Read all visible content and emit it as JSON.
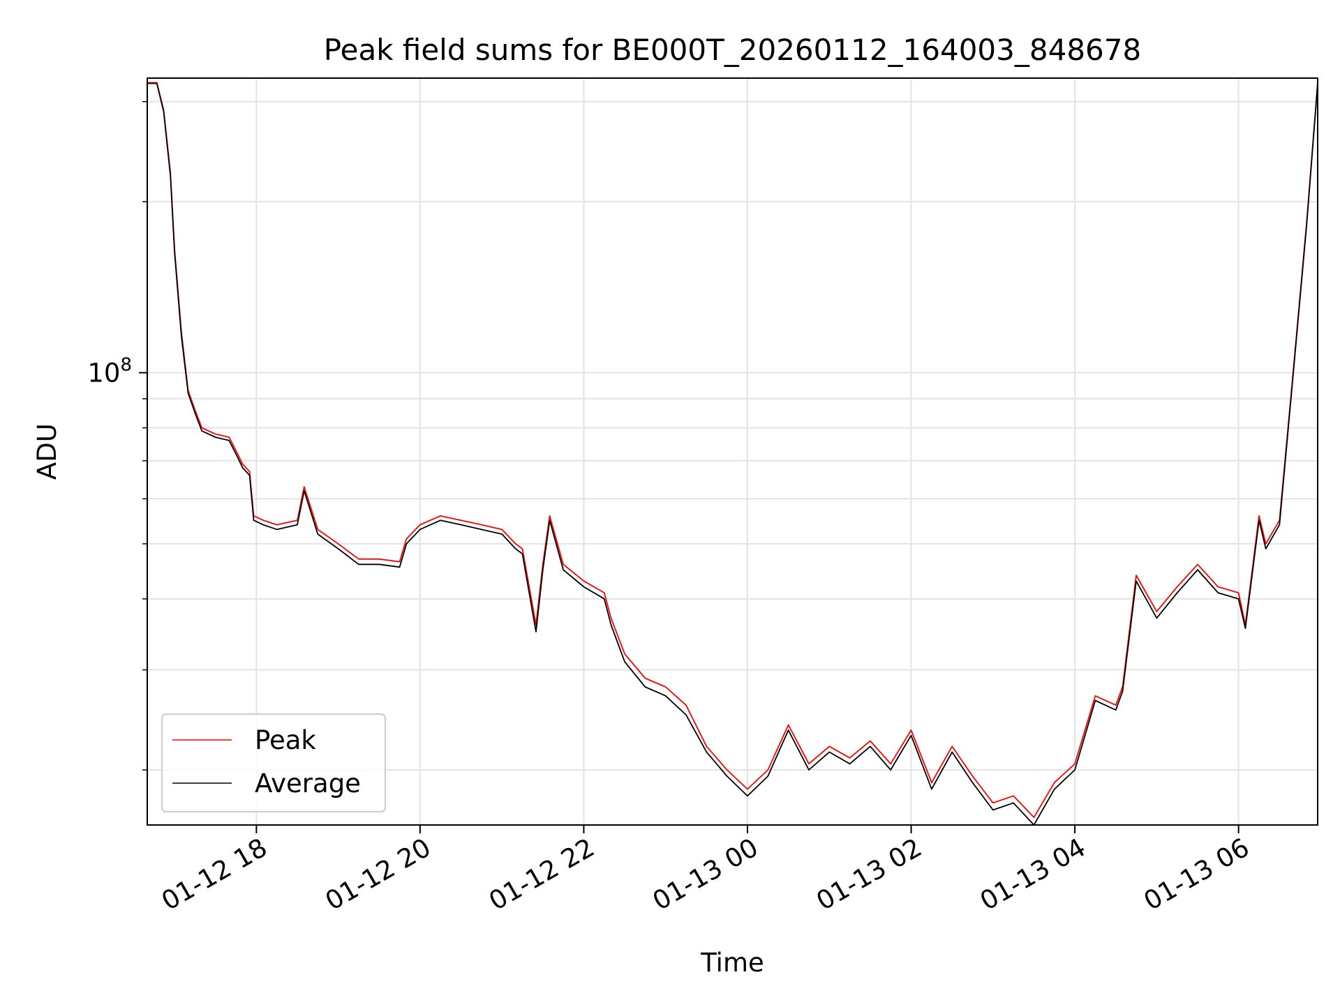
{
  "chart_data": {
    "type": "line",
    "title": "Peak field sums for BE000T_20260112_164003_848678",
    "xlabel": "Time",
    "ylabel": "ADU",
    "yscale": "log",
    "ylim": [
      16000000,
      330000000
    ],
    "xlim": [
      "2026-01-12 16:40",
      "2026-01-13 06:58"
    ],
    "grid": true,
    "legend_position": "lower-left",
    "colors": {
      "Peak": "#ff0000",
      "Average": "#000000"
    },
    "x_ticks": [
      {
        "label": "01-12 18",
        "t": "2026-01-12 18:00"
      },
      {
        "label": "01-12 20",
        "t": "2026-01-12 20:00"
      },
      {
        "label": "01-12 22",
        "t": "2026-01-12 22:00"
      },
      {
        "label": "01-13 00",
        "t": "2026-01-13 00:00"
      },
      {
        "label": "01-13 02",
        "t": "2026-01-13 02:00"
      },
      {
        "label": "01-13 04",
        "t": "2026-01-13 04:00"
      },
      {
        "label": "01-13 06",
        "t": "2026-01-13 06:00"
      }
    ],
    "y_major_tick": {
      "value": 100000000,
      "base": "10",
      "exponent": "8"
    },
    "y_minor_ticks": [
      20000000,
      30000000,
      40000000,
      50000000,
      60000000,
      70000000,
      80000000,
      90000000,
      200000000,
      300000000
    ],
    "x": [
      "2026-01-12 16:40",
      "2026-01-12 16:47",
      "2026-01-12 16:52",
      "2026-01-12 16:57",
      "2026-01-12 17:00",
      "2026-01-12 17:05",
      "2026-01-12 17:10",
      "2026-01-12 17:15",
      "2026-01-12 17:20",
      "2026-01-12 17:30",
      "2026-01-12 17:40",
      "2026-01-12 17:45",
      "2026-01-12 17:50",
      "2026-01-12 17:55",
      "2026-01-12 17:58",
      "2026-01-12 18:05",
      "2026-01-12 18:15",
      "2026-01-12 18:30",
      "2026-01-12 18:35",
      "2026-01-12 18:45",
      "2026-01-12 19:00",
      "2026-01-12 19:15",
      "2026-01-12 19:30",
      "2026-01-12 19:45",
      "2026-01-12 19:50",
      "2026-01-12 20:00",
      "2026-01-12 20:15",
      "2026-01-12 20:30",
      "2026-01-12 20:45",
      "2026-01-12 21:00",
      "2026-01-12 21:10",
      "2026-01-12 21:15",
      "2026-01-12 21:25",
      "2026-01-12 21:30",
      "2026-01-12 21:35",
      "2026-01-12 21:45",
      "2026-01-12 22:00",
      "2026-01-12 22:15",
      "2026-01-12 22:20",
      "2026-01-12 22:30",
      "2026-01-12 22:45",
      "2026-01-12 23:00",
      "2026-01-12 23:15",
      "2026-01-12 23:30",
      "2026-01-12 23:45",
      "2026-01-13 00:00",
      "2026-01-13 00:15",
      "2026-01-13 00:30",
      "2026-01-13 00:45",
      "2026-01-13 01:00",
      "2026-01-13 01:15",
      "2026-01-13 01:30",
      "2026-01-13 01:45",
      "2026-01-13 02:00",
      "2026-01-13 02:15",
      "2026-01-13 02:30",
      "2026-01-13 02:45",
      "2026-01-13 03:00",
      "2026-01-13 03:15",
      "2026-01-13 03:30",
      "2026-01-13 03:45",
      "2026-01-13 04:00",
      "2026-01-13 04:15",
      "2026-01-13 04:30",
      "2026-01-13 04:35",
      "2026-01-13 04:45",
      "2026-01-13 05:00",
      "2026-01-13 05:15",
      "2026-01-13 05:30",
      "2026-01-13 05:45",
      "2026-01-13 06:00",
      "2026-01-13 06:05",
      "2026-01-13 06:15",
      "2026-01-13 06:20",
      "2026-01-13 06:30",
      "2026-01-13 06:40",
      "2026-01-13 06:50",
      "2026-01-13 06:58"
    ],
    "series": [
      {
        "name": "Peak",
        "values": [
          324000000,
          324000000,
          290000000,
          225000000,
          165000000,
          118000000,
          93000000,
          86000000,
          80000000,
          78000000,
          77000000,
          73000000,
          69000000,
          67000000,
          56000000,
          55000000,
          54000000,
          55000000,
          63000000,
          53000000,
          50000000,
          47000000,
          47000000,
          46500000,
          51000000,
          54000000,
          56000000,
          55000000,
          54000000,
          53000000,
          50000000,
          49000000,
          36000000,
          46000000,
          56000000,
          46000000,
          43000000,
          41000000,
          37000000,
          32000000,
          29000000,
          28000000,
          26000000,
          22000000,
          20000000,
          18500000,
          20000000,
          24000000,
          20500000,
          22000000,
          21000000,
          22500000,
          20500000,
          23500000,
          19000000,
          22000000,
          19500000,
          17500000,
          18000000,
          16500000,
          19000000,
          20500000,
          27000000,
          26000000,
          28000000,
          44000000,
          38000000,
          42000000,
          46000000,
          42000000,
          41000000,
          36000000,
          56000000,
          50000000,
          55000000,
          100000000,
          185000000,
          324000000
        ]
      },
      {
        "name": "Average",
        "values": [
          323000000,
          323000000,
          288000000,
          222000000,
          163000000,
          116000000,
          92000000,
          85000000,
          79000000,
          77000000,
          76000000,
          72000000,
          68000000,
          66000000,
          55000000,
          54000000,
          53000000,
          54000000,
          62000000,
          52000000,
          49000000,
          46000000,
          46000000,
          45500000,
          50000000,
          53000000,
          55000000,
          54000000,
          53000000,
          52000000,
          49000000,
          48000000,
          35000000,
          45000000,
          55000000,
          45000000,
          42000000,
          40000000,
          36000000,
          31000000,
          28000000,
          27000000,
          25000000,
          21500000,
          19500000,
          18000000,
          19500000,
          23500000,
          20000000,
          21500000,
          20500000,
          22000000,
          20000000,
          23000000,
          18500000,
          21500000,
          19000000,
          17000000,
          17500000,
          16000000,
          18500000,
          20000000,
          26500000,
          25500000,
          27500000,
          43000000,
          37000000,
          41000000,
          45000000,
          41000000,
          40000000,
          35500000,
          55000000,
          49000000,
          54000000,
          99000000,
          183000000,
          323000000
        ]
      }
    ]
  }
}
